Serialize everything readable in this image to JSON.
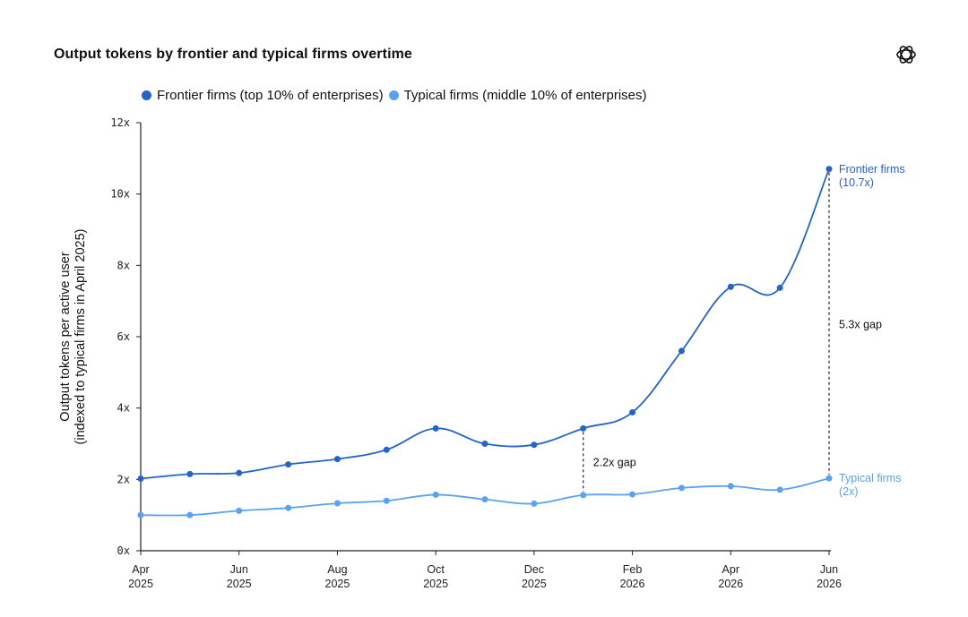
{
  "title": "Output tokens by frontier and typical firms overtime",
  "icons": {
    "logo": "openai-logo-icon"
  },
  "colors": {
    "frontier": "#2563c7",
    "typical": "#5aa2ef",
    "axis": "#222222",
    "text": "#111111"
  },
  "legend": [
    {
      "label": "Frontier firms (top 10% of enterprises)",
      "color": "#2563c7"
    },
    {
      "label": "Typical firms (middle 10% of enterprises)",
      "color": "#5aa2ef"
    }
  ],
  "chart_data": {
    "type": "line",
    "title": "Output tokens by frontier and typical firms overtime",
    "ylabel_line1": "Output tokens per active user",
    "ylabel_line2": "(indexed to typical firms in April 2025)",
    "xlabel": "",
    "ylim": [
      0,
      12
    ],
    "y_ticks": [
      0,
      2,
      4,
      6,
      8,
      10,
      12
    ],
    "y_tick_labels": [
      "0x",
      "2x",
      "4x",
      "6x",
      "8x",
      "10x",
      "12x"
    ],
    "x": [
      "2025-04",
      "2025-05",
      "2025-06",
      "2025-07",
      "2025-08",
      "2025-09",
      "2025-10",
      "2025-11",
      "2025-12",
      "2026-01",
      "2026-02",
      "2026-03",
      "2026-04",
      "2026-05",
      "2026-06"
    ],
    "x_ticks": [
      {
        "month": "Apr",
        "year": "2025",
        "index": 0
      },
      {
        "month": "Jun",
        "year": "2025",
        "index": 2
      },
      {
        "month": "Aug",
        "year": "2025",
        "index": 4
      },
      {
        "month": "Oct",
        "year": "2025",
        "index": 6
      },
      {
        "month": "Dec",
        "year": "2025",
        "index": 8
      },
      {
        "month": "Feb",
        "year": "2026",
        "index": 10
      },
      {
        "month": "Apr",
        "year": "2026",
        "index": 12
      },
      {
        "month": "Jun",
        "year": "2026",
        "index": 14
      }
    ],
    "series": [
      {
        "name": "Frontier firms (top 10% of enterprises)",
        "color": "#2563c7",
        "values": [
          2.02,
          2.15,
          2.18,
          2.42,
          2.57,
          2.83,
          3.43,
          3.0,
          2.97,
          3.43,
          3.88,
          5.6,
          7.4,
          7.37,
          10.7
        ]
      },
      {
        "name": "Typical firms (middle 10% of enterprises)",
        "color": "#5aa2ef",
        "values": [
          1.0,
          1.0,
          1.12,
          1.2,
          1.33,
          1.4,
          1.57,
          1.44,
          1.32,
          1.56,
          1.58,
          1.76,
          1.81,
          1.71,
          2.03
        ]
      }
    ],
    "gap_annotations": [
      {
        "label": "2.2x gap",
        "index": 9
      },
      {
        "label": "5.3x gap",
        "index": 14
      }
    ],
    "end_labels": [
      {
        "line1": "Frontier firms",
        "line2": "(10.7x)",
        "series": 0
      },
      {
        "line1": "Typical firms",
        "line2": "(2x)",
        "series": 1
      }
    ]
  }
}
